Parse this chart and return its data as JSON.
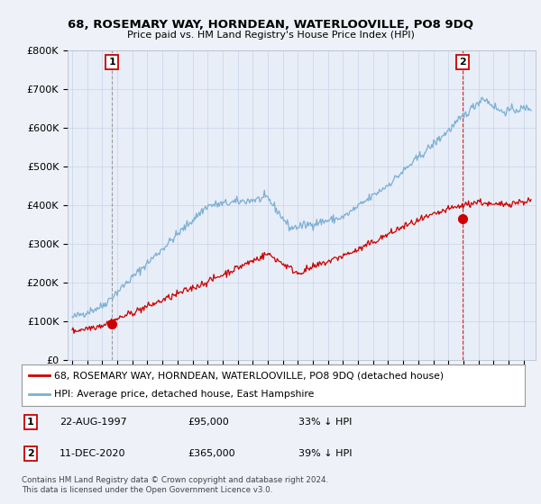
{
  "title": "68, ROSEMARY WAY, HORNDEAN, WATERLOOVILLE, PO8 9DQ",
  "subtitle": "Price paid vs. HM Land Registry's House Price Index (HPI)",
  "ylabel_ticks": [
    "£0",
    "£100K",
    "£200K",
    "£300K",
    "£400K",
    "£500K",
    "£600K",
    "£700K",
    "£800K"
  ],
  "ytick_values": [
    0,
    100000,
    200000,
    300000,
    400000,
    500000,
    600000,
    700000,
    800000
  ],
  "ylim": [
    0,
    800000
  ],
  "xlim_start": 1994.7,
  "xlim_end": 2025.8,
  "hpi_color": "#7bafd4",
  "price_color": "#cc0000",
  "vline1_color": "#888888",
  "vline2_color": "#cc0000",
  "marker1_x": 1997.64,
  "marker1_y": 95000,
  "marker2_x": 2020.95,
  "marker2_y": 365000,
  "annotation1_label": "1",
  "annotation2_label": "2",
  "legend_label1": "68, ROSEMARY WAY, HORNDEAN, WATERLOOVILLE, PO8 9DQ (detached house)",
  "legend_label2": "HPI: Average price, detached house, East Hampshire",
  "table_row1": [
    "1",
    "22-AUG-1997",
    "£95,000",
    "33% ↓ HPI"
  ],
  "table_row2": [
    "2",
    "11-DEC-2020",
    "£365,000",
    "39% ↓ HPI"
  ],
  "footnote": "Contains HM Land Registry data © Crown copyright and database right 2024.\nThis data is licensed under the Open Government Licence v3.0.",
  "background_color": "#eef2f8",
  "plot_bg_color": "#e8eef8",
  "grid_color": "#c8d4e8"
}
